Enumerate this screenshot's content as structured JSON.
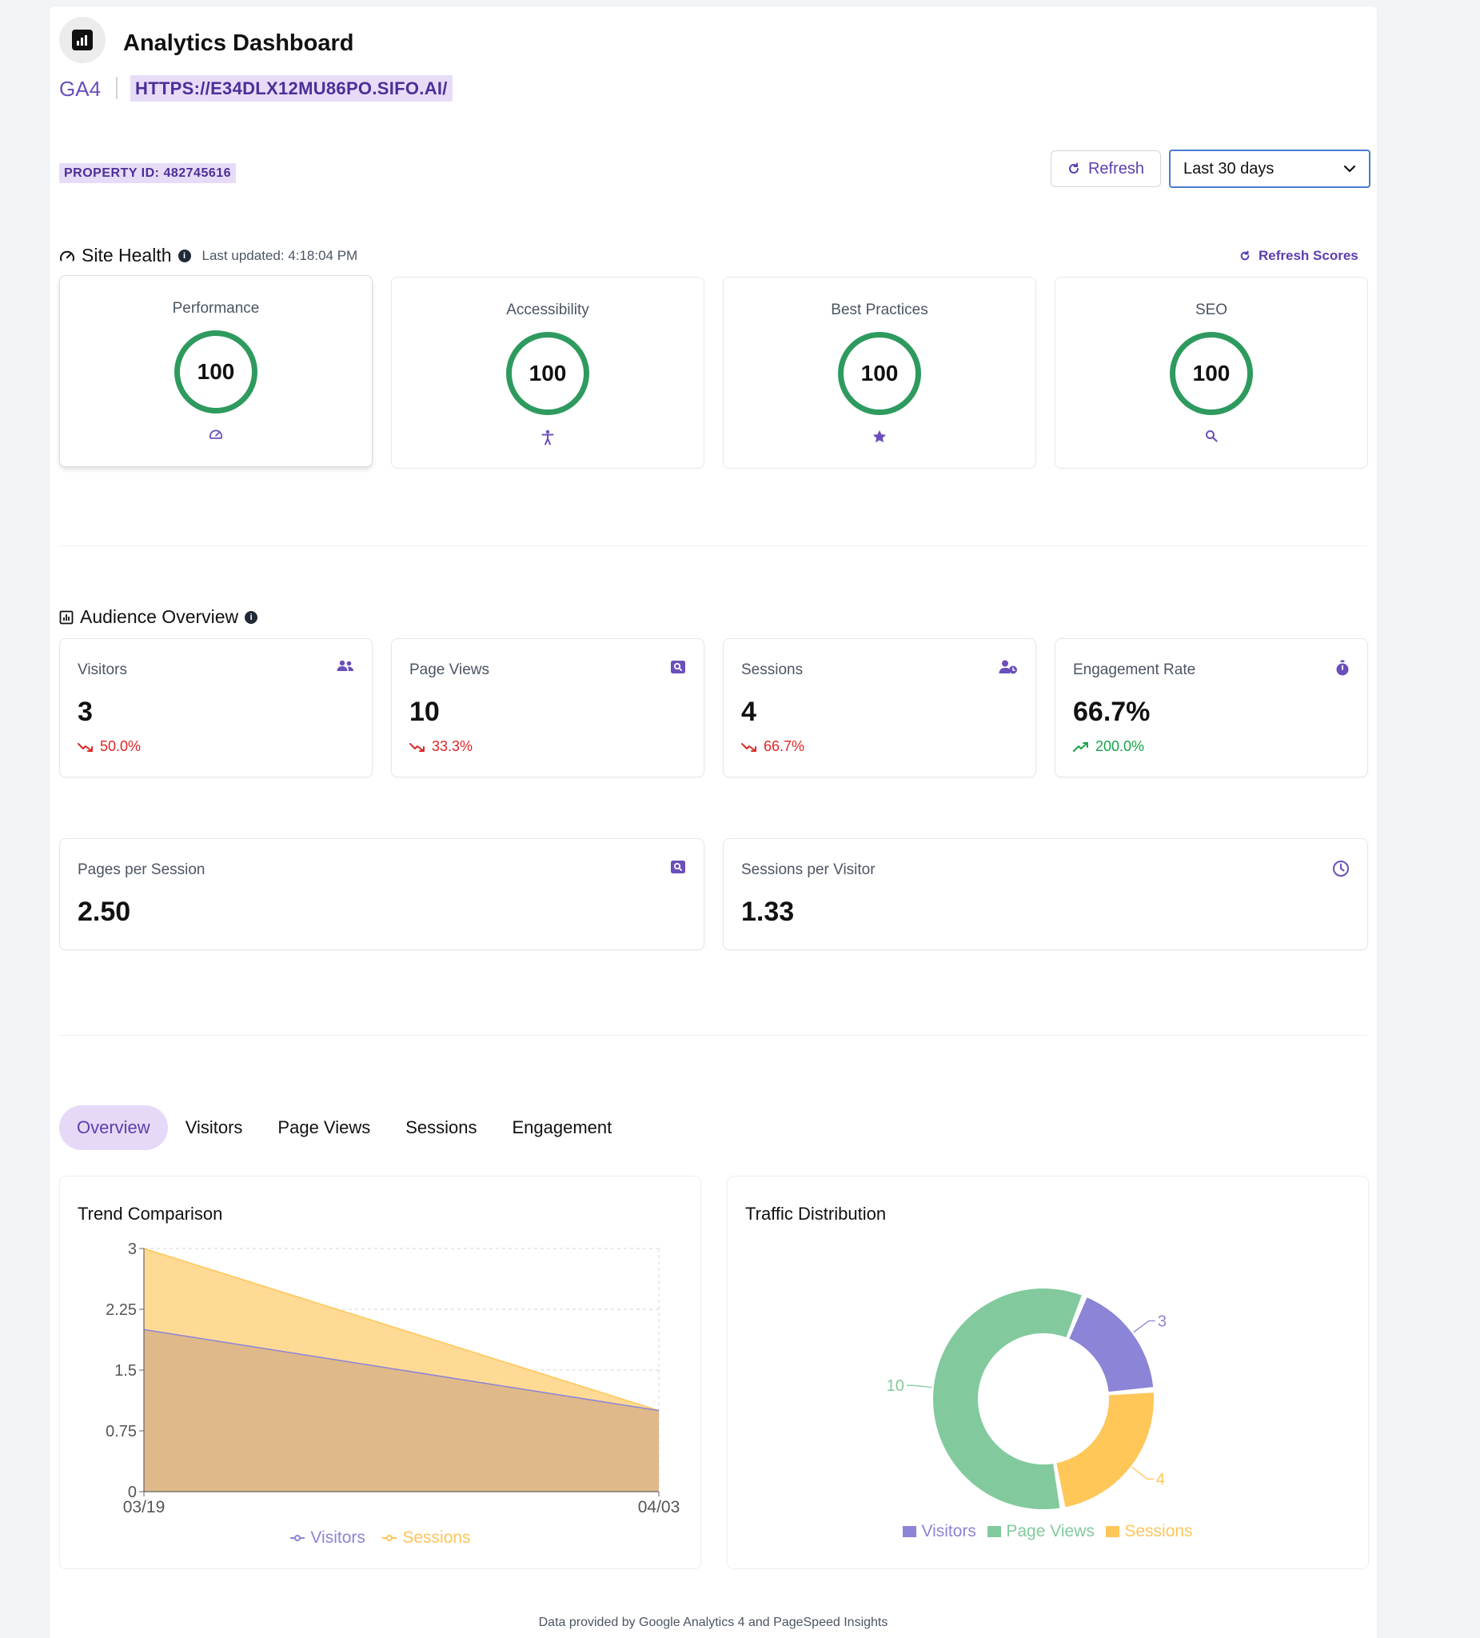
{
  "header": {
    "title": "Analytics Dashboard",
    "platform": "GA4",
    "url": "HTTPS://E34DLX12MU86PO.SIFO.AI/",
    "property_id": "PROPERTY ID: 482745616",
    "refresh_label": "Refresh",
    "date_range": "Last 30 days"
  },
  "site_health": {
    "title": "Site Health",
    "last_updated": "Last updated: 4:18:04 PM",
    "refresh_scores_label": "Refresh Scores",
    "scores": [
      {
        "label": "Performance",
        "value": "100",
        "icon": "gauge-icon"
      },
      {
        "label": "Accessibility",
        "value": "100",
        "icon": "accessibility-icon"
      },
      {
        "label": "Best Practices",
        "value": "100",
        "icon": "star-icon"
      },
      {
        "label": "SEO",
        "value": "100",
        "icon": "search-icon"
      }
    ]
  },
  "audience": {
    "title": "Audience Overview",
    "metrics": [
      {
        "label": "Visitors",
        "value": "3",
        "change": "50.0%",
        "trend": "down",
        "icon": "users-icon"
      },
      {
        "label": "Page Views",
        "value": "10",
        "change": "33.3%",
        "trend": "down",
        "icon": "page-search-icon"
      },
      {
        "label": "Sessions",
        "value": "4",
        "change": "66.7%",
        "trend": "down",
        "icon": "user-clock-icon"
      },
      {
        "label": "Engagement Rate",
        "value": "66.7%",
        "change": "200.0%",
        "trend": "up",
        "icon": "stopwatch-icon"
      }
    ],
    "secondary": [
      {
        "label": "Pages per Session",
        "value": "2.50",
        "icon": "page-search-icon"
      },
      {
        "label": "Sessions per Visitor",
        "value": "1.33",
        "icon": "clock-icon"
      }
    ]
  },
  "tabs": [
    "Overview",
    "Visitors",
    "Page Views",
    "Sessions",
    "Engagement"
  ],
  "active_tab": "Overview",
  "colors": {
    "accent": "#5b3fb0",
    "score_ring": "#2e9a5e",
    "visitors": "#8b84d7",
    "page_views": "#82ca9d",
    "sessions": "#ffc658",
    "down": "#dc2626",
    "up": "#16a34a"
  },
  "chart_data": [
    {
      "type": "area",
      "title": "Trend Comparison",
      "x": [
        "03/19",
        "04/03"
      ],
      "y_ticks": [
        "0",
        "0.75",
        "1.5",
        "2.25",
        "3"
      ],
      "ylim": [
        0,
        3
      ],
      "grid": true,
      "legend": "bottom",
      "series": [
        {
          "name": "Visitors",
          "values": [
            2,
            1
          ]
        },
        {
          "name": "Sessions",
          "values": [
            3,
            1
          ]
        }
      ]
    },
    {
      "type": "pie",
      "title": "Traffic Distribution",
      "categories": [
        "Visitors",
        "Page Views",
        "Sessions"
      ],
      "values": [
        3,
        10,
        4
      ],
      "labels": [
        "3",
        "10",
        "4"
      ],
      "legend": "bottom"
    }
  ],
  "footer": "Data provided by Google Analytics 4 and PageSpeed Insights"
}
